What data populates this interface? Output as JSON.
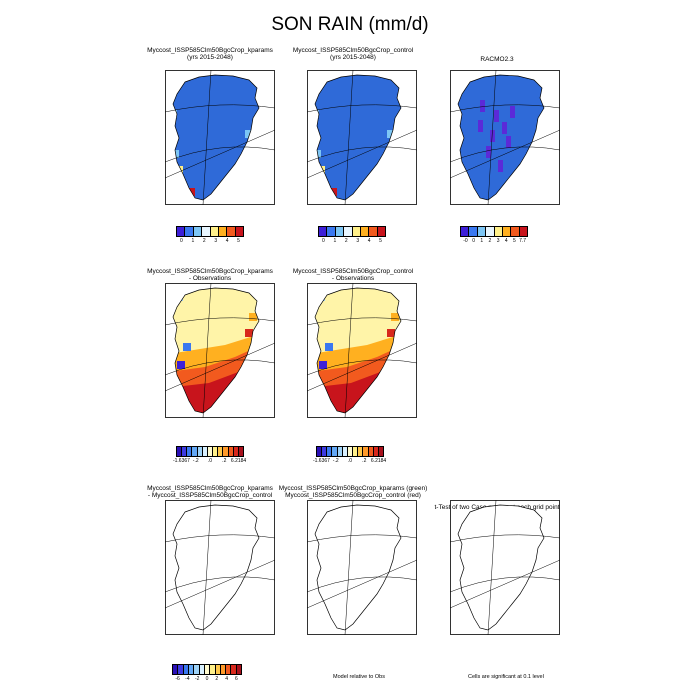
{
  "title": "SON RAIN (mm/d)",
  "panels": [
    {
      "id": "p1",
      "line1": "Myccost_ISSP585Clm50BgcCrop_kparams",
      "line2": "(yrs 2015-2048)",
      "fill": "#2f6ad8",
      "variant": "mean"
    },
    {
      "id": "p2",
      "line1": "Myccost_ISSP585Clm50BgcCrop_control",
      "line2": "(yrs 2015-2048)",
      "fill": "#2f6ad8",
      "variant": "mean"
    },
    {
      "id": "p3",
      "line1": "RACMO2.3",
      "line2": "",
      "fill": "#2f6ad8",
      "variant": "obs"
    },
    {
      "id": "p4",
      "line1": "Myccost_ISSP585Clm50BgcCrop_kparams",
      "line2": "- Observations",
      "fill": "#fff4a8",
      "variant": "bias"
    },
    {
      "id": "p5",
      "line1": "Myccost_ISSP585Clm50BgcCrop_control",
      "line2": "- Observations",
      "fill": "#fff4a8",
      "variant": "bias"
    },
    {
      "id": "p6",
      "line1": "Myccost_ISSP585Clm50BgcCrop_kparams",
      "line2": "- Myccost_ISSP585Clm50BgcCrop_control",
      "fill": "#ffffff",
      "variant": "diff"
    },
    {
      "id": "p7",
      "line1": "Myccost_ISSP585Clm50BgcCrop_kparams (green)",
      "line2": "Myccost_ISSP585Clm50BgcCrop_control (red)",
      "fill": "#ffffff",
      "variant": "diff"
    },
    {
      "id": "p8",
      "line1": "t-Test of two Case means at each grid point",
      "line2": "",
      "fill": "#ffffff",
      "variant": "diff"
    }
  ],
  "colorbars": [
    {
      "id": "cb1",
      "colors": [
        "#3d1fd8",
        "#3a78f0",
        "#7dc6f5",
        "#e8f6ff",
        "#fff08a",
        "#ffb020",
        "#f25a1e",
        "#c8141c"
      ],
      "ticks": [
        "0",
        "1",
        "2",
        "3",
        "4",
        "5"
      ]
    },
    {
      "id": "cb2",
      "colors": [
        "#3d1fd8",
        "#3a78f0",
        "#7dc6f5",
        "#e8f6ff",
        "#fff08a",
        "#ffb020",
        "#f25a1e",
        "#c8141c"
      ],
      "ticks": [
        "0",
        "1",
        "2",
        "3",
        "4",
        "5"
      ]
    },
    {
      "id": "cb3",
      "colors": [
        "#3d1fd8",
        "#3a78f0",
        "#7dc6f5",
        "#e8f6ff",
        "#fff08a",
        "#ffb020",
        "#f25a1e",
        "#c8141c"
      ],
      "ticks": [
        "-0",
        "0",
        "1",
        "2",
        "3",
        "4",
        "5",
        "7.7"
      ]
    },
    {
      "id": "cb4",
      "colors": [
        "#2a10b8",
        "#3d3ae0",
        "#3a78f0",
        "#64a8f5",
        "#9fd3f8",
        "#d8f0ff",
        "#fffbd0",
        "#fff08a",
        "#ffc84a",
        "#ff9a2a",
        "#f25a1e",
        "#d8281c",
        "#a8101c"
      ],
      "ticks": [
        "-1.6367",
        "-.2",
        ".0",
        ".2",
        "6.2184"
      ]
    },
    {
      "id": "cb5",
      "colors": [
        "#2a10b8",
        "#3d3ae0",
        "#3a78f0",
        "#64a8f5",
        "#9fd3f8",
        "#d8f0ff",
        "#fffbd0",
        "#fff08a",
        "#ffc84a",
        "#ff9a2a",
        "#f25a1e",
        "#d8281c",
        "#a8101c"
      ],
      "ticks": [
        "-1.6367",
        "-.2",
        ".0",
        ".2",
        "6.2184"
      ]
    },
    {
      "id": "cb6",
      "colors": [
        "#2a10b8",
        "#3d3ae0",
        "#3a78f0",
        "#64a8f5",
        "#9fd3f8",
        "#d8f0ff",
        "#fffbd0",
        "#fff08a",
        "#ffc84a",
        "#ff9a2a",
        "#f25a1e",
        "#d8281c",
        "#a8101c"
      ],
      "ticks": [
        "-6",
        "-4",
        "-2",
        "0",
        "2",
        "4",
        "6"
      ]
    }
  ],
  "notes": {
    "model_relative": "Model relative to Obs",
    "significance": "Cells are significant at 0.1 level"
  }
}
